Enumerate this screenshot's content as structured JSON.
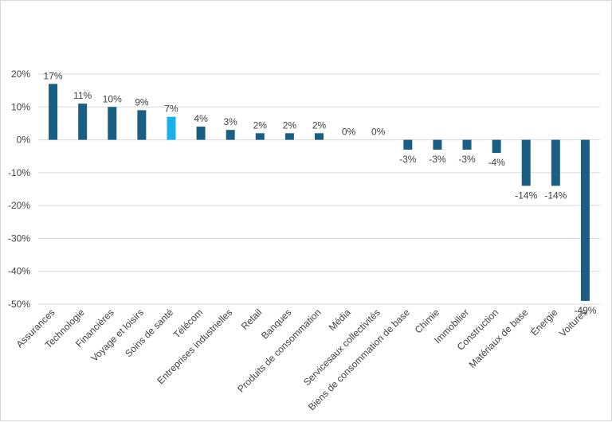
{
  "chart_data": {
    "type": "bar",
    "title": "",
    "xlabel": "",
    "ylabel": "",
    "ylim": [
      -0.5,
      0.2
    ],
    "yticks": [
      0.2,
      0.1,
      0,
      -0.1,
      -0.2,
      -0.3,
      -0.4,
      -0.5
    ],
    "ytick_labels": [
      "20%",
      "10%",
      "0%",
      "-10%",
      "-20%",
      "-30%",
      "-40%",
      "-50%"
    ],
    "grid": true,
    "categories": [
      "Assurances",
      "Technologie",
      "Financières",
      "Voyage et loisirs",
      "Soins de santé",
      "Télécom",
      "Entreprises industrielles",
      "Retail",
      "Banques",
      "Produits de consommation",
      "Média",
      "Servicesaux collectivités",
      "Biens de consommation de base",
      "Chimie",
      "Immobilier",
      "Construction",
      "Matériaux de base",
      "Énergie",
      "Voitures"
    ],
    "values": [
      0.17,
      0.11,
      0.1,
      0.09,
      0.07,
      0.04,
      0.03,
      0.02,
      0.02,
      0.02,
      0.0,
      0.0,
      -0.03,
      -0.03,
      -0.03,
      -0.04,
      -0.14,
      -0.14,
      -0.49
    ],
    "data_labels": [
      "17%",
      "11%",
      "10%",
      "9%",
      "7%",
      "4%",
      "3%",
      "2%",
      "2%",
      "2%",
      "0%",
      "0%",
      "-3%",
      "-3%",
      "-3%",
      "-4%",
      "-14%",
      "-14%",
      "-49%"
    ],
    "highlight_category": "Soins de santé",
    "colors": {
      "bar": "#1b5e84",
      "highlight": "#1ab0ea",
      "grid": "#d9d9d9",
      "text": "#404040"
    }
  }
}
